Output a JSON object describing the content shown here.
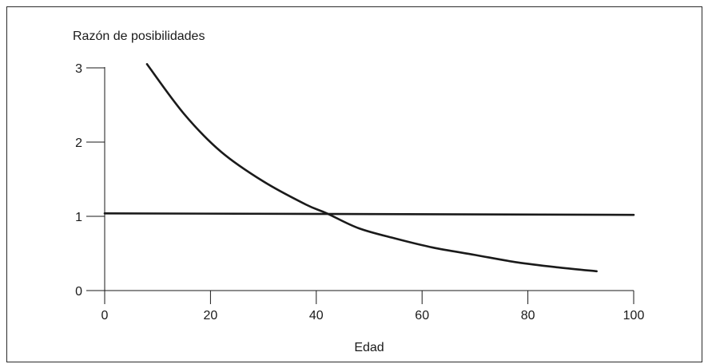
{
  "chart_data": {
    "type": "line",
    "title": "",
    "ylabel": "Razón de posibilidades",
    "xlabel": "Edad",
    "xlim": [
      0,
      100
    ],
    "ylim": [
      0,
      3
    ],
    "xticks": [
      0,
      20,
      40,
      60,
      80,
      100
    ],
    "yticks": [
      0,
      1,
      2,
      3
    ],
    "grid": false,
    "series": [
      {
        "x": [
          8,
          15,
          22,
          30,
          38,
          42,
          48,
          55,
          62,
          70,
          78,
          86,
          93
        ],
        "y": [
          3.05,
          2.38,
          1.87,
          1.47,
          1.16,
          1.04,
          0.84,
          0.7,
          0.58,
          0.48,
          0.38,
          0.31,
          0.26
        ]
      },
      {
        "x": [
          0,
          100
        ],
        "y": [
          1.04,
          1.02
        ]
      }
    ]
  }
}
